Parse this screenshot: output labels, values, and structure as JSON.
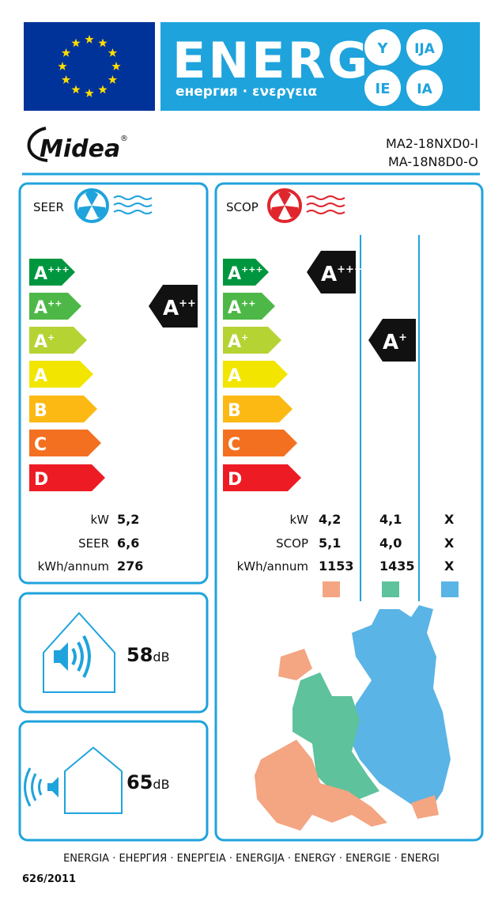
{
  "header": {
    "title": "ENERG",
    "subtitle": "енергия · ενεργεια",
    "suffixes": [
      "Y",
      "IJA",
      "IE",
      "IA"
    ]
  },
  "brand": {
    "name": "Midea",
    "mark": "®"
  },
  "models": [
    "MA2-18NXD0-I",
    "MA-18N8D0-O"
  ],
  "classes": [
    {
      "letter": "A",
      "sup": "+++",
      "color": "#00963f"
    },
    {
      "letter": "A",
      "sup": "++",
      "color": "#4db847"
    },
    {
      "letter": "A",
      "sup": "+",
      "color": "#b6d334"
    },
    {
      "letter": "A",
      "color": "#f2e600"
    },
    {
      "letter": "B",
      "color": "#fcb913"
    },
    {
      "letter": "C",
      "color": "#f37021"
    },
    {
      "letter": "D",
      "color": "#ed1c24"
    }
  ],
  "cooling": {
    "label": "SEER",
    "rating": {
      "letter": "A",
      "sup": "++"
    },
    "rows": [
      {
        "label": "kW",
        "value": "5,2"
      },
      {
        "label": "SEER",
        "value": "6,6"
      },
      {
        "label": "kWh/annum",
        "value": "276"
      }
    ]
  },
  "heating": {
    "label": "SCOP",
    "ratings": [
      {
        "letter": "A",
        "sup": "+++"
      },
      {
        "letter": "A",
        "sup": "+"
      }
    ],
    "rows": [
      {
        "label": "kW",
        "values": [
          "4,2",
          "4,1",
          "X"
        ]
      },
      {
        "label": "SCOP",
        "values": [
          "5,1",
          "4,0",
          "X"
        ]
      },
      {
        "label": "kWh/annum",
        "values": [
          "1153",
          "1435",
          "X"
        ]
      }
    ]
  },
  "noise": [
    {
      "value": "58",
      "unit": "dB"
    },
    {
      "value": "65",
      "unit": "dB"
    }
  ],
  "footer": {
    "languages": "ENERGIA · ЕНЕРГИЯ · ΕΝΕΡΓΕΙΑ · ENERGIJA · ENERGY · ENERGIE · ENERGI",
    "regulation": "626/2011"
  }
}
